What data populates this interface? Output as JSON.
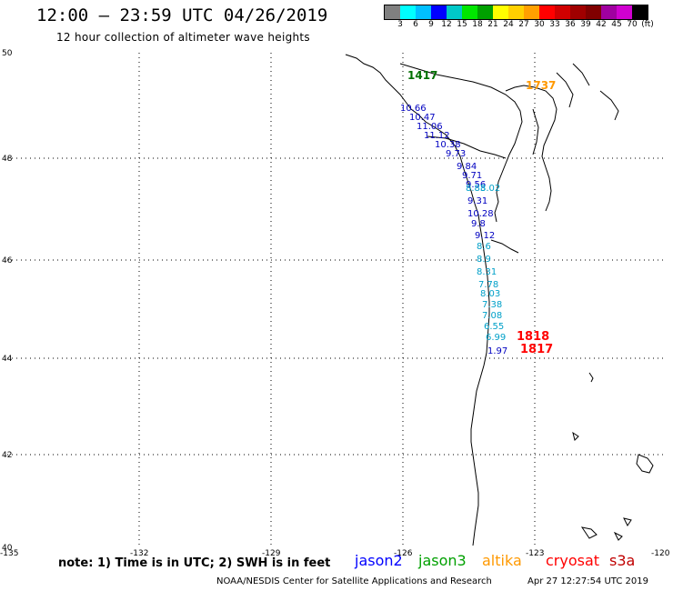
{
  "header": {
    "title": "12:00 – 23:59 UTC 04/26/2019",
    "subtitle": "12 hour collection of altimeter wave heights"
  },
  "colorbar": {
    "colors": [
      "#808080",
      "#00ffff",
      "#00bfff",
      "#0000ff",
      "#00c8c8",
      "#00e600",
      "#00a000",
      "#ffff00",
      "#ffd000",
      "#ffa000",
      "#ff0000",
      "#d00000",
      "#a00000",
      "#800000",
      "#a000a0",
      "#d000d0",
      "#000000"
    ],
    "labels": [
      "3",
      "6",
      "9",
      "12",
      "15",
      "18",
      "21",
      "24",
      "27",
      "30",
      "33",
      "36",
      "39",
      "42",
      "45",
      "70",
      "(ft)"
    ]
  },
  "axes": {
    "lat_labels": [
      "50",
      "48",
      "46",
      "44",
      "42",
      "40"
    ],
    "lon_labels": [
      "-135",
      "-132",
      "-129",
      "-126",
      "-123",
      "-120"
    ]
  },
  "observations": {
    "jason2": [
      "10.66",
      "10.47",
      "11.06",
      "11.12",
      "10.38",
      "9.73",
      "9.84",
      "9.71",
      "9.56",
      "9.31",
      "10.28",
      "9.8",
      "9.12",
      "1.97"
    ],
    "jason2_colors": [
      "#0000c0",
      "#0000c0",
      "#0000c0",
      "#0000c0",
      "#0000c0",
      "#0000c0",
      "#0000c0",
      "#0000c0",
      "#0000c0",
      "#0000c0",
      "#0000c0",
      "#0000c0",
      "#0000c0",
      "#0000c0"
    ],
    "jason3_lights": [
      "8.83",
      "8.02",
      "8.6",
      "8.9",
      "8.31",
      "7.78",
      "8.03",
      "7.38",
      "7.08",
      "6.55",
      "6.99"
    ],
    "labels_green": [
      "1417"
    ],
    "labels_orange": [
      "1737"
    ],
    "labels_red": [
      "1818",
      "1817"
    ]
  },
  "footer": {
    "note": "note: 1) Time is in UTC; 2) SWH is in feet",
    "satellites": [
      {
        "name": "jason2",
        "color": "#0000ff"
      },
      {
        "name": "jason3",
        "color": "#00a000"
      },
      {
        "name": "altika",
        "color": "#ff9900"
      },
      {
        "name": "cryosat",
        "color": "#ff0000"
      },
      {
        "name": "s3a",
        "color": "#c00000"
      }
    ],
    "credit": "NOAA/NESDIS Center for Satellite Applications and Research",
    "timestamp": "Apr 27 12:27:54 UTC 2019"
  }
}
